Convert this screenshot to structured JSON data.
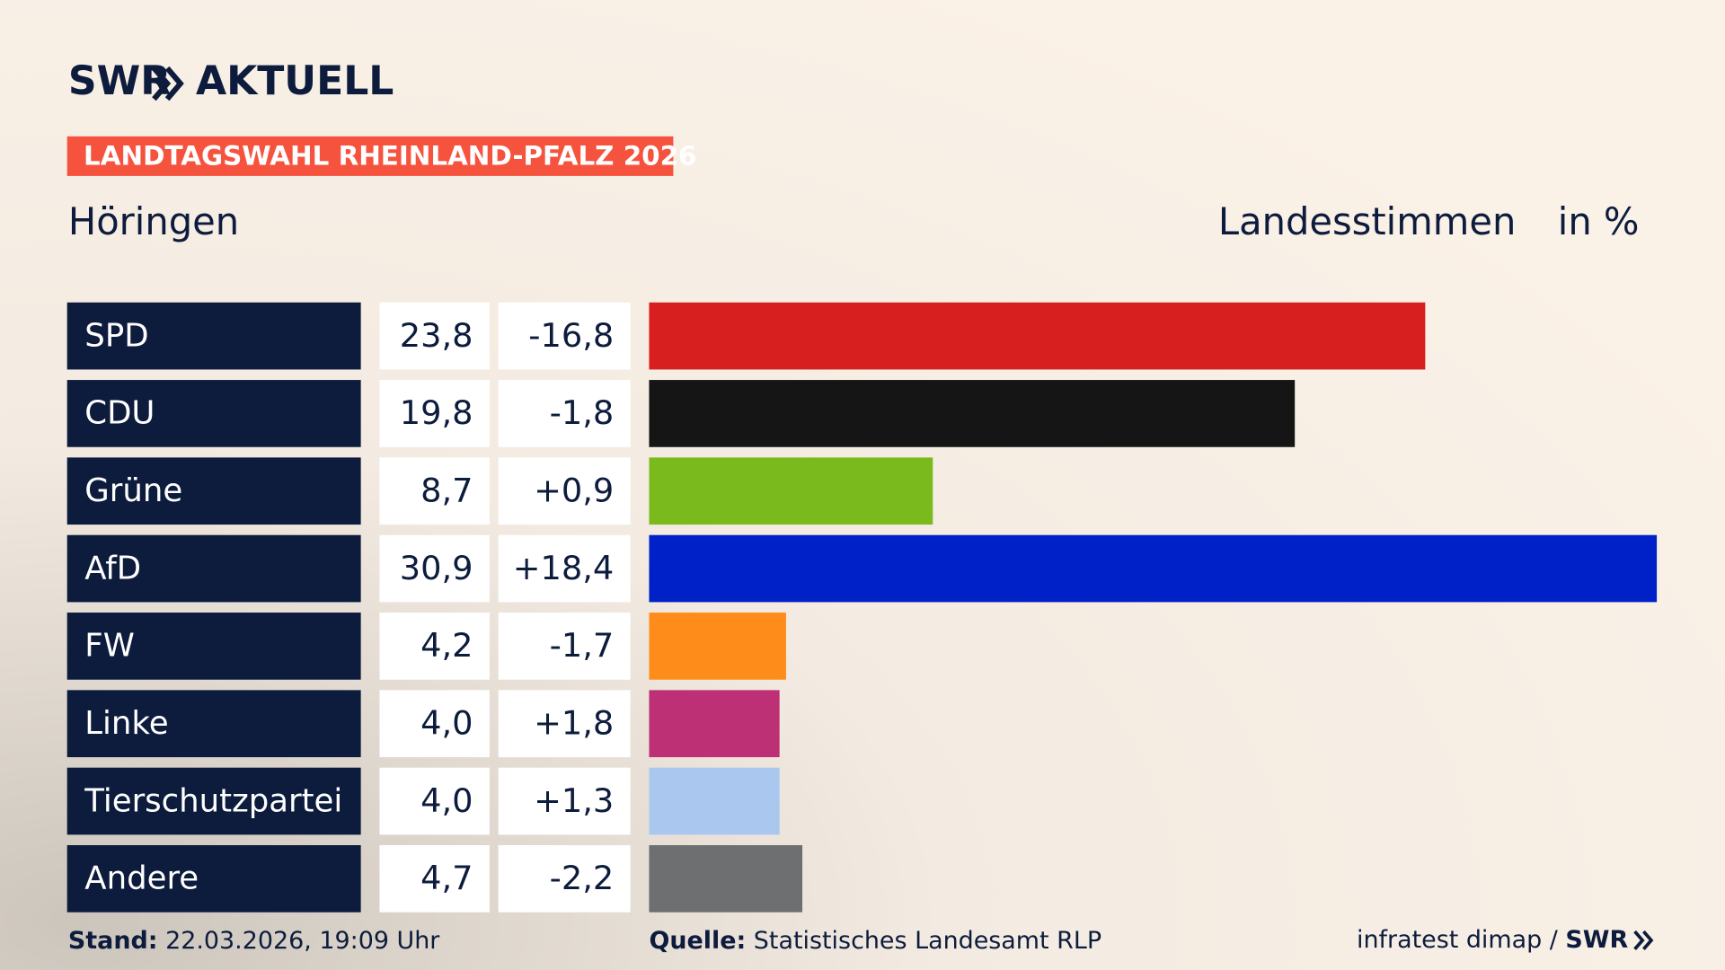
{
  "chart_data": {
    "type": "bar",
    "logo": {
      "brand": "SWR",
      "product": "AKTUELL"
    },
    "title": "LANDTAGSWAHL RHEINLAND-PFALZ 2026",
    "place": "Höringen",
    "subtitle": "Landesstimmen",
    "unit": "in %",
    "categories": [
      "SPD",
      "CDU",
      "Grüne",
      "AfD",
      "FW",
      "Linke",
      "Tierschutzpartei",
      "Andere"
    ],
    "values": [
      23.8,
      19.8,
      8.7,
      30.9,
      4.2,
      4.0,
      4.0,
      4.7
    ],
    "value_labels": [
      "23,8",
      "19,8",
      "8,7",
      "30,9",
      "4,2",
      "4,0",
      "4,0",
      "4,7"
    ],
    "changes": [
      -16.8,
      -1.8,
      0.9,
      18.4,
      -1.7,
      1.8,
      1.3,
      -2.2
    ],
    "change_labels": [
      "-16,8",
      "-1,8",
      "+0,9",
      "+18,4",
      "-1,7",
      "+1,8",
      "+1,3",
      "-2,2"
    ],
    "colors": [
      "#d71f1f",
      "#151515",
      "#7aba1c",
      "#0021c8",
      "#fe8c1a",
      "#bd3075",
      "#aac8ef",
      "#6e6f71"
    ],
    "footer": {
      "stand_label": "Stand:",
      "stand": "22.03.2026, 19:09 Uhr",
      "source_label": "Quelle:",
      "source": "Statistisches Landesamt RLP",
      "credit": "infratest dimap /",
      "credit_brand": "SWR"
    }
  }
}
